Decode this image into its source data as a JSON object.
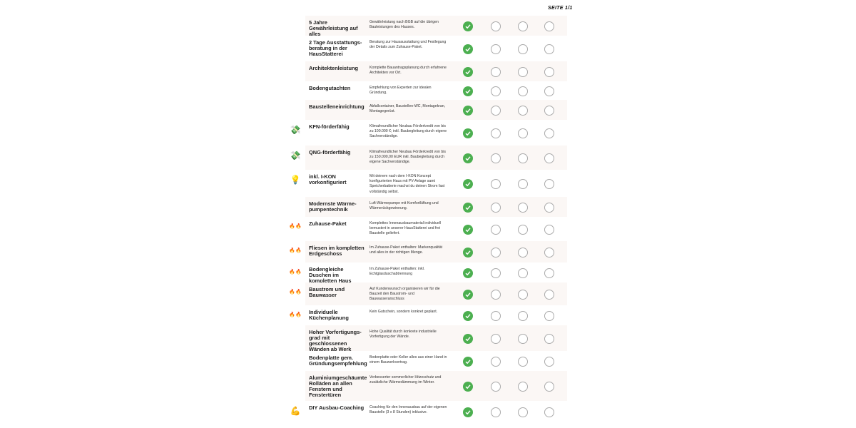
{
  "page_label": "SEITE 1/1",
  "colors": {
    "check": "#4caf50",
    "row_shade": "#fbf7f5",
    "circle_border": "#aaaaaa"
  },
  "rows": [
    {
      "feature": "5 Jahre Gewährleistung auf alles",
      "description": "Gewährleistung nach BGB auf die übrigen Bauleistungen des Hauses.",
      "icon": "",
      "marks": [
        true,
        false,
        false,
        false
      ]
    },
    {
      "feature": "2 Tage Ausstattungs-beratung in der HausStatterei",
      "description": "Beratung zur Hausausstattung und Festlegung der Details zum Zuhause-Paket.",
      "icon": "",
      "marks": [
        true,
        false,
        false,
        false
      ]
    },
    {
      "feature": "Architektenleistung",
      "description": "Komplette Bauantragsplanung durch erfahrene Architekten vor Ort.",
      "icon": "",
      "marks": [
        true,
        false,
        false,
        false
      ]
    },
    {
      "feature": "Bodengutachten",
      "description": "Empfehlung von Experten zur idealen Gründung.",
      "icon": "",
      "marks": [
        true,
        false,
        false,
        false
      ]
    },
    {
      "feature": "Baustelleneinrichtung",
      "description": "Abfallcontainer, Baustellen-WC, Montagekran, Montagegerüst.",
      "icon": "",
      "marks": [
        true,
        false,
        false,
        false
      ]
    },
    {
      "feature": "KFN-förderfähig",
      "description": "Klimafreundlicher Neubau Förderkredit von bis zu 100.000 €; inkl. Baubegleitung durch eigene Sachverständige.",
      "icon": "money-icon",
      "marks": [
        true,
        false,
        false,
        false
      ]
    },
    {
      "feature": "QNG-förderfähig",
      "description": "Klimafreundlicher Neubau Förderkredit von bis zu 150.000,00 EUR inkl. Baubegleitung durch eigene Sachverständige.",
      "icon": "money-icon",
      "marks": [
        true,
        false,
        false,
        false
      ]
    },
    {
      "feature": "inkl. I-KON vorkonfiguriert",
      "description": "Mit deinem nach dem I-KON Konzept konfigurierten Haus mit PV-Anlage samt Speicherbatterie machst du deinen Strom fast vollständig selbst.",
      "icon": "lightbulb-icon",
      "marks": [
        true,
        false,
        false,
        false
      ]
    },
    {
      "feature": "Modernste Wärme-pumpentechnik",
      "description": "Luft-Wärmepumpe mit Komfortlüftung und Wärmerückgewinnung.",
      "icon": "",
      "marks": [
        true,
        false,
        false,
        false
      ]
    },
    {
      "feature": "Zuhause-Paket",
      "description": "Komplettes Innenausbaumaterial individuell bemustert in unserer HausStatterei und frei Baustelle geliefert.",
      "icon": "fire-icon",
      "marks": [
        true,
        false,
        false,
        false
      ]
    },
    {
      "feature": "Fliesen im kompletten Erdgeschoss",
      "description": "Im Zuhause-Paket enthalten: Markenqualität und alles in der richtigen Menge.",
      "icon": "fire-icon",
      "marks": [
        true,
        false,
        false,
        false
      ]
    },
    {
      "feature": "Bodengleiche Duschen im kompletten Haus",
      "description": "Im Zuhause-Paket enthalten: inkl. Echtglasduschabtrennung",
      "icon": "fire-icon",
      "marks": [
        true,
        false,
        false,
        false
      ]
    },
    {
      "feature": "Baustrom und Bauwasser",
      "description": "Auf Kundenwunsch organisieren wir für die Bauzeit den Baustrom- und Bauwasseranschluss",
      "icon": "fire-icon",
      "marks": [
        true,
        false,
        false,
        false
      ]
    },
    {
      "feature": "Individuelle Küchenplanung",
      "description": "Kein Gutschein, sondern konkret geplant.",
      "icon": "fire-icon",
      "marks": [
        true,
        false,
        false,
        false
      ]
    },
    {
      "feature": "Hoher Vorfertigungs-grad mit geschlossenen Wänden ab Werk",
      "description": "Hohe Qualität durch konkrete industrielle Vorfertigung der Wände.",
      "icon": "",
      "marks": [
        true,
        false,
        false,
        false
      ]
    },
    {
      "feature": "Bodenplatte gem. Gründungsempfehlung",
      "description": "Bodenplatte oder Keller alles aus einer Hand in einem Bauwerkvertrag.",
      "icon": "",
      "marks": [
        true,
        false,
        false,
        false
      ]
    },
    {
      "feature": "Aluminiumgeschäumte Rolläden an allen Fenstern und Fenstertüren",
      "description": "Verbesserter sommerlicher Hitzeschutz und zusätzliche Wärmedämmung im Winter.",
      "icon": "",
      "marks": [
        true,
        false,
        false,
        false
      ]
    },
    {
      "feature": "DIY Ausbau-Coaching",
      "description": "Coaching für den Innenausbau auf der eigenen Baustelle (3 x 8 Stunden) inklusive.",
      "icon": "flexed-arm-icon",
      "marks": [
        true,
        false,
        false,
        false
      ]
    }
  ]
}
